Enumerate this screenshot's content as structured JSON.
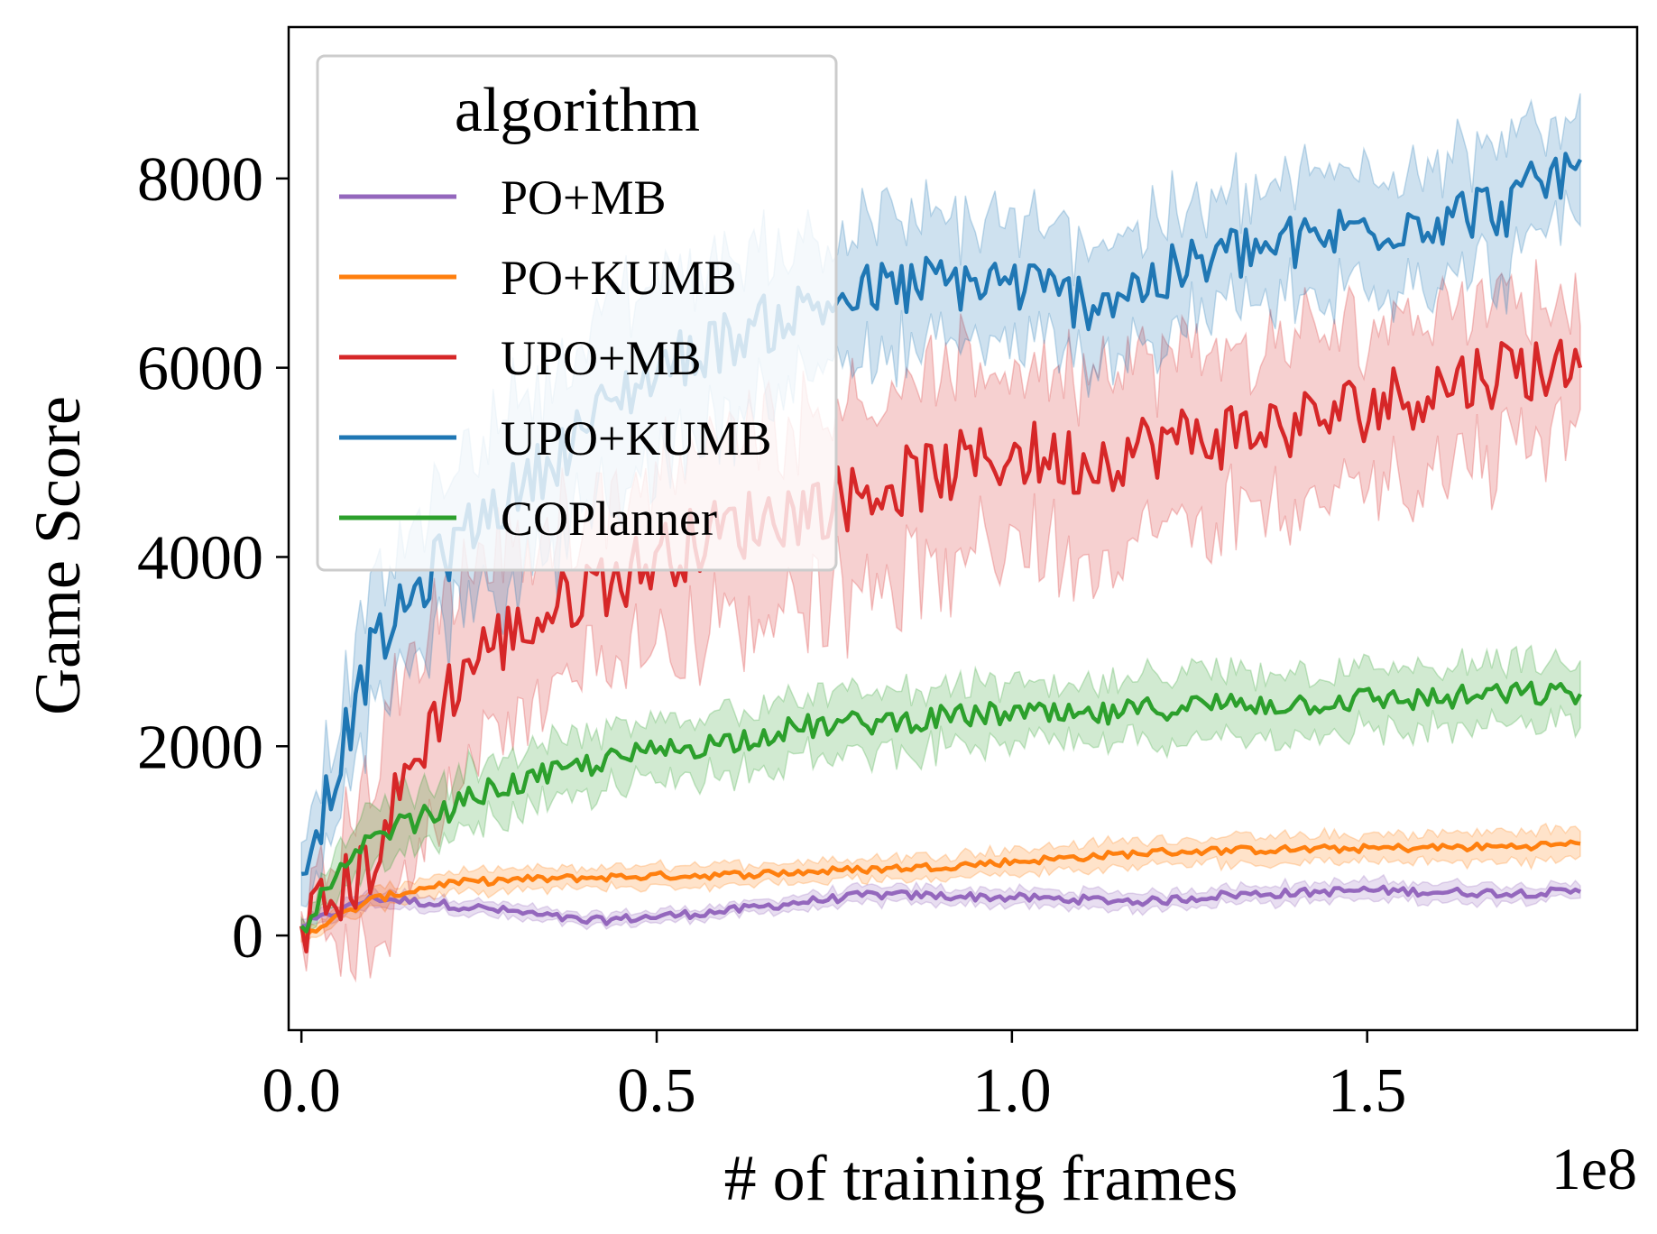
{
  "chart_data": {
    "type": "line",
    "title": "",
    "xlabel": "# of training frames",
    "ylabel": "Game Score",
    "x_offset_label": "1e8",
    "xlim": [
      -0.018,
      1.88
    ],
    "ylim": [
      -1000,
      9600
    ],
    "x_ticks": [
      0.0,
      0.5,
      1.0,
      1.5
    ],
    "x_tick_labels": [
      "0.0",
      "0.5",
      "1.0",
      "1.5"
    ],
    "y_ticks": [
      0,
      2000,
      4000,
      6000,
      8000
    ],
    "y_tick_labels": [
      "0",
      "2000",
      "4000",
      "6000",
      "8000"
    ],
    "grid": false,
    "legend": {
      "title": "algorithm",
      "position": "top-left"
    },
    "series": [
      {
        "name": "PO+MB",
        "color": "#9467bd",
        "x": [
          0.0,
          0.1,
          0.2,
          0.3,
          0.4,
          0.5,
          0.6,
          0.7,
          0.8,
          0.9,
          1.0,
          1.1,
          1.2,
          1.3,
          1.4,
          1.5,
          1.6,
          1.7,
          1.8
        ],
        "y": [
          100,
          400,
          330,
          250,
          150,
          200,
          260,
          350,
          430,
          420,
          400,
          380,
          360,
          430,
          450,
          480,
          460,
          450,
          460
        ],
        "band": [
          60,
          80,
          70,
          70,
          60,
          60,
          60,
          70,
          80,
          80,
          80,
          80,
          80,
          90,
          90,
          90,
          90,
          80,
          70
        ]
      },
      {
        "name": "PO+KUMB",
        "color": "#ff7f0e",
        "x": [
          0.0,
          0.1,
          0.2,
          0.3,
          0.4,
          0.5,
          0.6,
          0.7,
          0.8,
          0.9,
          1.0,
          1.1,
          1.2,
          1.3,
          1.4,
          1.5,
          1.6,
          1.7,
          1.8
        ],
        "y": [
          0,
          380,
          550,
          590,
          610,
          630,
          640,
          670,
          700,
          730,
          780,
          830,
          880,
          900,
          910,
          920,
          930,
          940,
          970
        ],
        "band": [
          60,
          90,
          100,
          100,
          100,
          100,
          100,
          110,
          110,
          120,
          120,
          130,
          130,
          130,
          130,
          140,
          140,
          150,
          150
        ]
      },
      {
        "name": "UPO+MB",
        "color": "#d62728",
        "x": [
          0.0,
          0.05,
          0.1,
          0.15,
          0.2,
          0.25,
          0.3,
          0.35,
          0.4,
          0.45,
          0.5,
          0.6,
          0.7,
          0.8,
          0.9,
          1.0,
          1.1,
          1.2,
          1.3,
          1.4,
          1.5,
          1.6,
          1.7,
          1.8
        ],
        "y": [
          100,
          400,
          800,
          1700,
          2500,
          3000,
          3200,
          3400,
          3700,
          3800,
          4000,
          4300,
          4500,
          4700,
          4900,
          5100,
          5000,
          5200,
          5300,
          5400,
          5600,
          5800,
          6000,
          6000
        ],
        "band": [
          200,
          500,
          900,
          1000,
          1000,
          900,
          800,
          800,
          800,
          800,
          900,
          900,
          1000,
          1000,
          900,
          900,
          900,
          800,
          800,
          800,
          800,
          800,
          800,
          600
        ]
      },
      {
        "name": "UPO+KUMB",
        "color": "#1f77b4",
        "x": [
          0.0,
          0.05,
          0.1,
          0.15,
          0.2,
          0.25,
          0.3,
          0.35,
          0.4,
          0.45,
          0.5,
          0.6,
          0.7,
          0.8,
          0.9,
          1.0,
          1.1,
          1.2,
          1.3,
          1.4,
          1.5,
          1.6,
          1.7,
          1.8
        ],
        "y": [
          650,
          1800,
          3000,
          3500,
          4000,
          4400,
          4700,
          5000,
          5400,
          5700,
          6000,
          6300,
          6600,
          6800,
          6900,
          6900,
          6700,
          6900,
          7200,
          7300,
          7500,
          7600,
          7700,
          8200
        ],
        "band": [
          300,
          500,
          600,
          600,
          700,
          800,
          900,
          900,
          900,
          900,
          900,
          800,
          700,
          700,
          600,
          600,
          600,
          600,
          600,
          600,
          600,
          600,
          600,
          500
        ]
      },
      {
        "name": "COPlanner",
        "color": "#2ca02c",
        "x": [
          0.0,
          0.05,
          0.1,
          0.15,
          0.2,
          0.25,
          0.3,
          0.35,
          0.4,
          0.5,
          0.6,
          0.7,
          0.8,
          0.9,
          1.0,
          1.1,
          1.2,
          1.3,
          1.4,
          1.5,
          1.6,
          1.7,
          1.8
        ],
        "y": [
          100,
          600,
          1000,
          1200,
          1300,
          1500,
          1600,
          1700,
          1800,
          1950,
          2050,
          2200,
          2250,
          2300,
          2350,
          2300,
          2400,
          2450,
          2450,
          2500,
          2500,
          2550,
          2550
        ],
        "band": [
          80,
          250,
          300,
          300,
          300,
          300,
          300,
          300,
          300,
          300,
          300,
          300,
          300,
          300,
          300,
          300,
          300,
          300,
          300,
          300,
          300,
          300,
          300
        ]
      }
    ]
  }
}
